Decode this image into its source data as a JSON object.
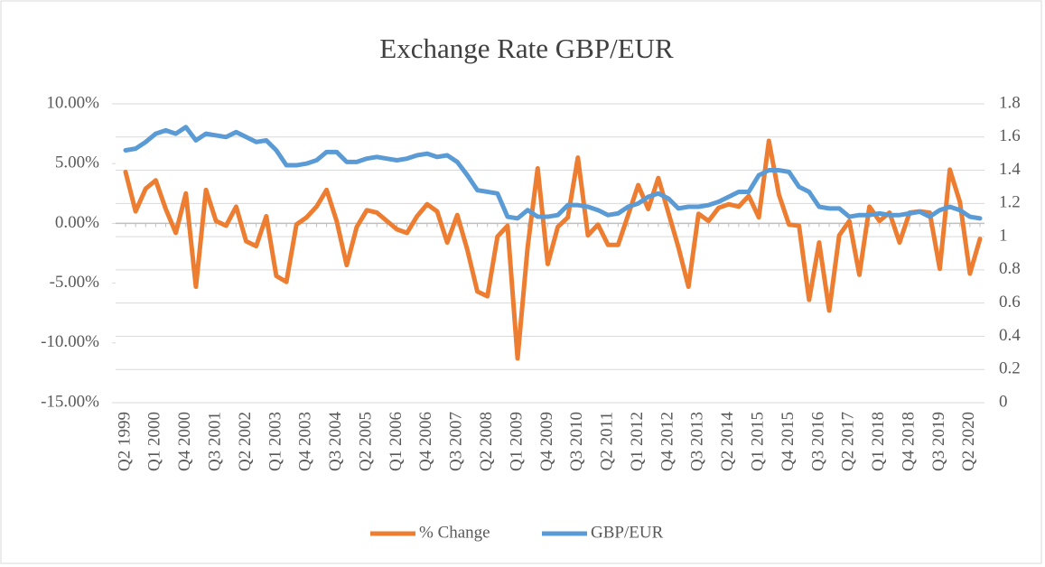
{
  "chart_data": {
    "type": "line",
    "title": "Exchange Rate GBP/EUR",
    "categories": [
      "Q2 1999",
      null,
      null,
      "Q1 2000",
      null,
      null,
      "Q4 2000",
      null,
      null,
      "Q3 2001",
      null,
      null,
      "Q2 2002",
      null,
      null,
      "Q1 2003",
      null,
      null,
      "Q4 2003",
      null,
      null,
      "Q3 2004",
      null,
      null,
      "Q2 2005",
      null,
      null,
      "Q1 2006",
      null,
      null,
      "Q4 2006",
      null,
      null,
      "Q3 2007",
      null,
      null,
      "Q2 2008",
      null,
      null,
      "Q1 2009",
      null,
      null,
      "Q4 2009",
      null,
      null,
      "Q3 2010",
      null,
      null,
      "Q2 2011",
      null,
      null,
      "Q1 2012",
      null,
      null,
      "Q4 2012",
      null,
      null,
      "Q3 2013",
      null,
      null,
      "Q2 2014",
      null,
      null,
      "Q1 2015",
      null,
      null,
      "Q4 2015",
      null,
      null,
      "Q3 2016",
      null,
      null,
      "Q2 2017",
      null,
      null,
      "Q1 2018",
      null,
      null,
      "Q4 2018",
      null,
      null,
      "Q3 2019",
      null,
      null,
      "Q2 2020",
      null
    ],
    "series": [
      {
        "name": "% Change",
        "color": "#ed7d31",
        "values": [
          4.3,
          1.0,
          2.9,
          3.6,
          1.2,
          -0.8,
          2.5,
          -5.3,
          2.8,
          0.2,
          -0.2,
          1.4,
          -1.5,
          -1.9,
          0.6,
          -4.4,
          -4.9,
          -0.1,
          0.5,
          1.4,
          2.8,
          0.2,
          -3.5,
          -0.3,
          1.1,
          0.9,
          0.2,
          -0.5,
          -0.8,
          0.6,
          1.6,
          1.0,
          -1.6,
          0.7,
          -2.2,
          -5.7,
          -6.1,
          -1.1,
          -0.2,
          -11.3,
          -2.0,
          4.6,
          -3.4,
          -0.3,
          0.5,
          5.5,
          -1.0,
          -0.1,
          -1.8,
          -1.8,
          0.7,
          3.2,
          1.2,
          3.8,
          0.9,
          -2.0,
          -5.3,
          0.8,
          0.2,
          1.3,
          1.6,
          1.4,
          2.3,
          0.5,
          6.9,
          2.4,
          -0.1,
          -0.2,
          -6.4,
          -1.6,
          -7.3,
          -1.0,
          0.2,
          -4.3,
          1.4,
          0.2,
          0.9,
          -1.6,
          0.9,
          1.0,
          0.9,
          -3.8,
          4.5,
          1.8,
          -4.2,
          -1.3
        ]
      },
      {
        "name": "GBP/EUR",
        "color": "#5b9bd5",
        "axis": "y2",
        "values": [
          1.52,
          1.53,
          1.57,
          1.62,
          1.64,
          1.62,
          1.66,
          1.58,
          1.62,
          1.61,
          1.6,
          1.63,
          1.6,
          1.57,
          1.58,
          1.52,
          1.43,
          1.43,
          1.44,
          1.46,
          1.51,
          1.51,
          1.45,
          1.45,
          1.47,
          1.48,
          1.47,
          1.46,
          1.47,
          1.49,
          1.5,
          1.48,
          1.49,
          1.45,
          1.37,
          1.28,
          1.27,
          1.26,
          1.12,
          1.11,
          1.16,
          1.12,
          1.12,
          1.13,
          1.19,
          1.19,
          1.18,
          1.16,
          1.13,
          1.14,
          1.18,
          1.2,
          1.24,
          1.26,
          1.23,
          1.17,
          1.18,
          1.18,
          1.19,
          1.21,
          1.24,
          1.27,
          1.27,
          1.37,
          1.4,
          1.4,
          1.39,
          1.3,
          1.27,
          1.18,
          1.17,
          1.17,
          1.12,
          1.13,
          1.13,
          1.14,
          1.13,
          1.13,
          1.14,
          1.15,
          1.12,
          1.16,
          1.18,
          1.16,
          1.12,
          1.11
        ]
      }
    ],
    "ylim": [
      -15,
      10
    ],
    "yticks": [
      {
        "value": -15,
        "label": "-15.00%"
      },
      {
        "value": -10,
        "label": "-10.00%"
      },
      {
        "value": -5,
        "label": "-5.00%"
      },
      {
        "value": 0,
        "label": "0.00%"
      },
      {
        "value": 5,
        "label": "5.00%"
      },
      {
        "value": 10,
        "label": "10.00%"
      }
    ],
    "y2lim": [
      0,
      1.8
    ],
    "y2ticks": [
      0,
      0.2,
      0.4,
      0.6,
      0.8,
      1,
      1.2,
      1.4,
      1.6,
      1.8
    ],
    "grid": true,
    "legend": "bottom"
  }
}
